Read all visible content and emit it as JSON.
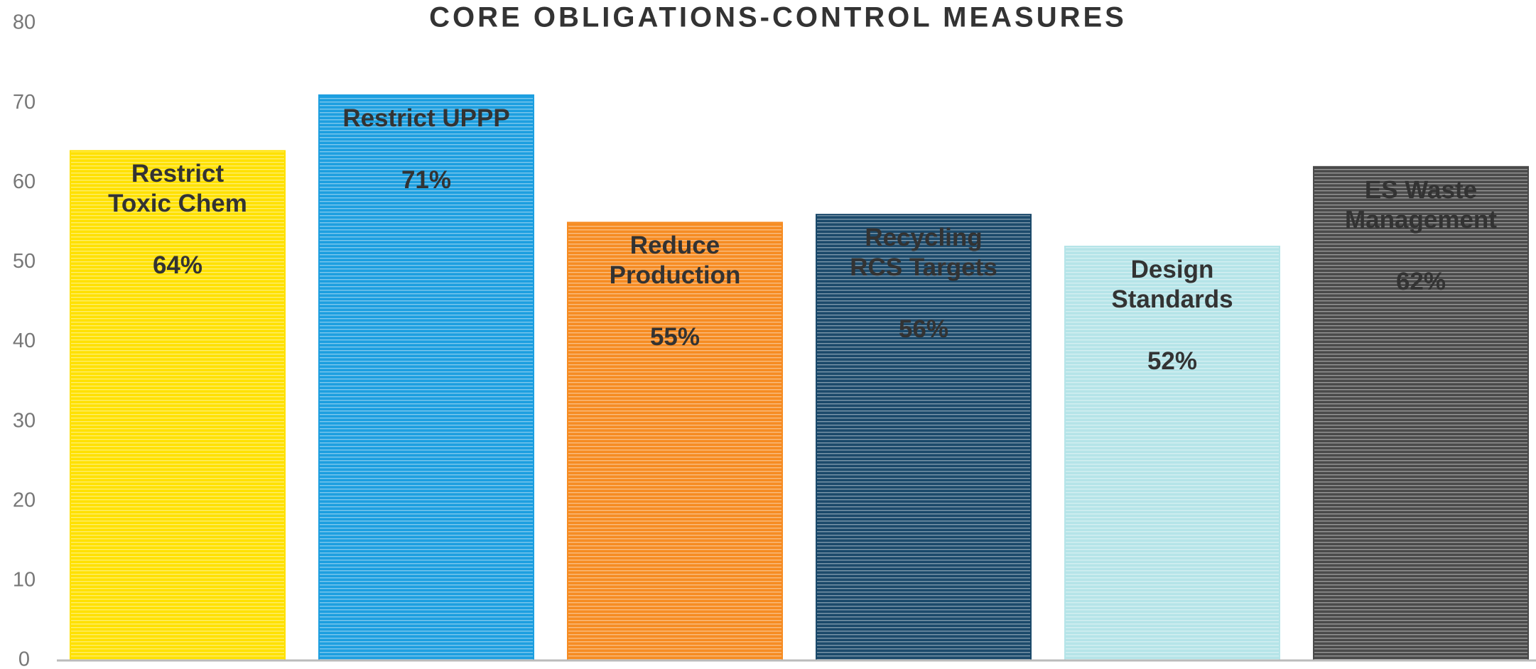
{
  "chart_data": {
    "type": "bar",
    "title": "CORE OBLIGATIONS-CONTROL MEASURES",
    "categories": [
      "Restrict\nToxic Chem",
      "Restrict UPPP",
      "Reduce\nProduction",
      "Recycling\nRCS Targets",
      "Design\nStandards",
      "ES Waste\nManagement"
    ],
    "values": [
      64,
      71,
      55,
      56,
      52,
      62
    ],
    "value_labels": [
      "64%",
      "71%",
      "55%",
      "56%",
      "52%",
      "62%"
    ],
    "colors": [
      "#ffe100",
      "#1d9fe0",
      "#f68c23",
      "#1c4a6b",
      "#b5e4e8",
      "#4b4b4b"
    ],
    "ylim": [
      0,
      80
    ],
    "yticks": [
      0,
      10,
      20,
      30,
      40,
      50,
      60,
      70,
      80
    ],
    "grid": false
  }
}
